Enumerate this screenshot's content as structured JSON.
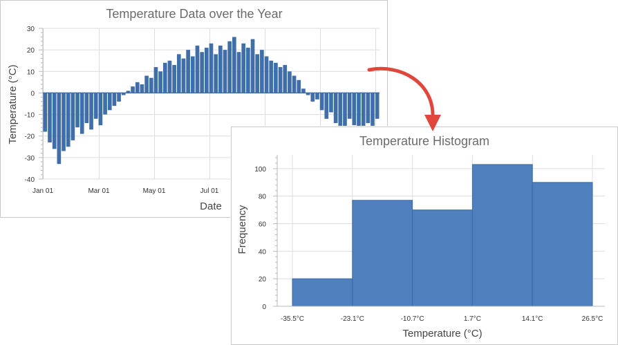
{
  "colors": {
    "bar": "#3f6ea8",
    "bar_edge": "#2f5a90",
    "hist_bar": "#4f80bd",
    "hist_edge": "#3b6aa3",
    "arrow": "#e0463c"
  },
  "arrow": {
    "icon": "curved-arrow-icon"
  },
  "chart_data": [
    {
      "type": "bar",
      "title": "Temperature Data over the Year",
      "xlabel": "Date",
      "ylabel": "Temperature (°C)",
      "ylim": [
        -40,
        30
      ],
      "yticks": [
        30,
        20,
        10,
        0,
        -10,
        -20,
        -30,
        -40
      ],
      "ytick_labels": [
        "30",
        "20",
        "10",
        "0",
        "-10",
        "-20",
        "-30",
        "-40"
      ],
      "xrange": [
        "Jan 01",
        "Dec 31"
      ],
      "xticks": [
        "Jan 01",
        "Mar 01",
        "May 01",
        "Jul 01"
      ],
      "grid": true,
      "x": [
        "Jan 01",
        "Jan 06",
        "Jan 11",
        "Jan 16",
        "Jan 21",
        "Jan 26",
        "Jan 31",
        "Feb 05",
        "Feb 10",
        "Feb 15",
        "Feb 20",
        "Feb 25",
        "Mar 02",
        "Mar 07",
        "Mar 12",
        "Mar 17",
        "Mar 22",
        "Mar 27",
        "Apr 01",
        "Apr 06",
        "Apr 11",
        "Apr 16",
        "Apr 21",
        "Apr 26",
        "May 01",
        "May 06",
        "May 11",
        "May 16",
        "May 21",
        "May 26",
        "May 31",
        "Jun 05",
        "Jun 10",
        "Jun 15",
        "Jun 20",
        "Jun 25",
        "Jun 30",
        "Jul 05",
        "Jul 10",
        "Jul 15",
        "Jul 20",
        "Jul 25",
        "Jul 30",
        "Aug 04",
        "Aug 09",
        "Aug 14",
        "Aug 19",
        "Aug 24",
        "Aug 29",
        "Sep 03",
        "Sep 08",
        "Sep 13",
        "Sep 18",
        "Sep 23",
        "Sep 28",
        "Oct 03",
        "Oct 08",
        "Oct 13",
        "Oct 18",
        "Oct 23",
        "Oct 28",
        "Nov 02",
        "Nov 07",
        "Nov 12",
        "Nov 17",
        "Nov 22",
        "Nov 27",
        "Dec 02",
        "Dec 07",
        "Dec 12",
        "Dec 17",
        "Dec 22",
        "Dec 27"
      ],
      "values": [
        -18,
        -23,
        -26,
        -33,
        -27,
        -25,
        -22,
        -16,
        -19,
        -14,
        -17,
        -12,
        -15,
        -10,
        -8,
        -6,
        -4,
        -1,
        1,
        3,
        5,
        4,
        8,
        7,
        12,
        10,
        14,
        15,
        13,
        18,
        16,
        20,
        17,
        22,
        19,
        21,
        23,
        18,
        22,
        20,
        24,
        26,
        19,
        23,
        21,
        25,
        18,
        20,
        17,
        15,
        14,
        12,
        13,
        10,
        8,
        6,
        2,
        -1,
        -4,
        -3,
        -8,
        -12,
        -9,
        -14,
        -18,
        -16,
        -12,
        -15,
        -20,
        -17,
        -14,
        -16,
        -12
      ]
    },
    {
      "type": "bar",
      "title": "Temperature Histogram",
      "xlabel": "Temperature (°C)",
      "ylabel": "Frequency",
      "ylim": [
        0,
        110
      ],
      "yticks": [
        0,
        20,
        40,
        60,
        80,
        100
      ],
      "ytick_labels": [
        "0",
        "20",
        "40",
        "60",
        "80",
        "100"
      ],
      "bin_edges": [
        -35.5,
        -23.1,
        -10.7,
        1.7,
        14.1,
        26.5
      ],
      "bin_edge_labels": [
        "-35.5°C",
        "-23.1°C",
        "-10.7°C",
        "1.7°C",
        "14.1°C",
        "26.5°C"
      ],
      "values": [
        20,
        77,
        70,
        103,
        90
      ],
      "grid": true
    }
  ]
}
